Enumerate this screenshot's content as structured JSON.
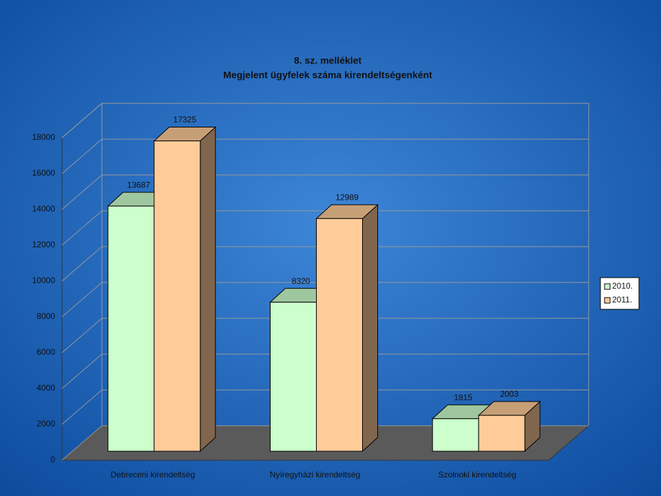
{
  "chart_data": {
    "type": "bar3d",
    "title": "8. sz. melléklet",
    "subtitle": "Megjelent ügyfelek száma kirendeltségenként",
    "categories": [
      "Debreceni kirendeltség",
      "Nyíregyházi kirendeltség",
      "Szolnoki kirendeltség"
    ],
    "series": [
      {
        "name": "2010.",
        "color": "#ccffcc",
        "values": [
          13687,
          8320,
          1815
        ]
      },
      {
        "name": "2011.",
        "color": "#ffcc99",
        "values": [
          17325,
          12989,
          2003
        ]
      }
    ],
    "ylim": [
      0,
      18000
    ],
    "yticks": [
      0,
      2000,
      4000,
      6000,
      8000,
      10000,
      12000,
      14000,
      16000,
      18000
    ],
    "grid": true,
    "legend": "right"
  }
}
